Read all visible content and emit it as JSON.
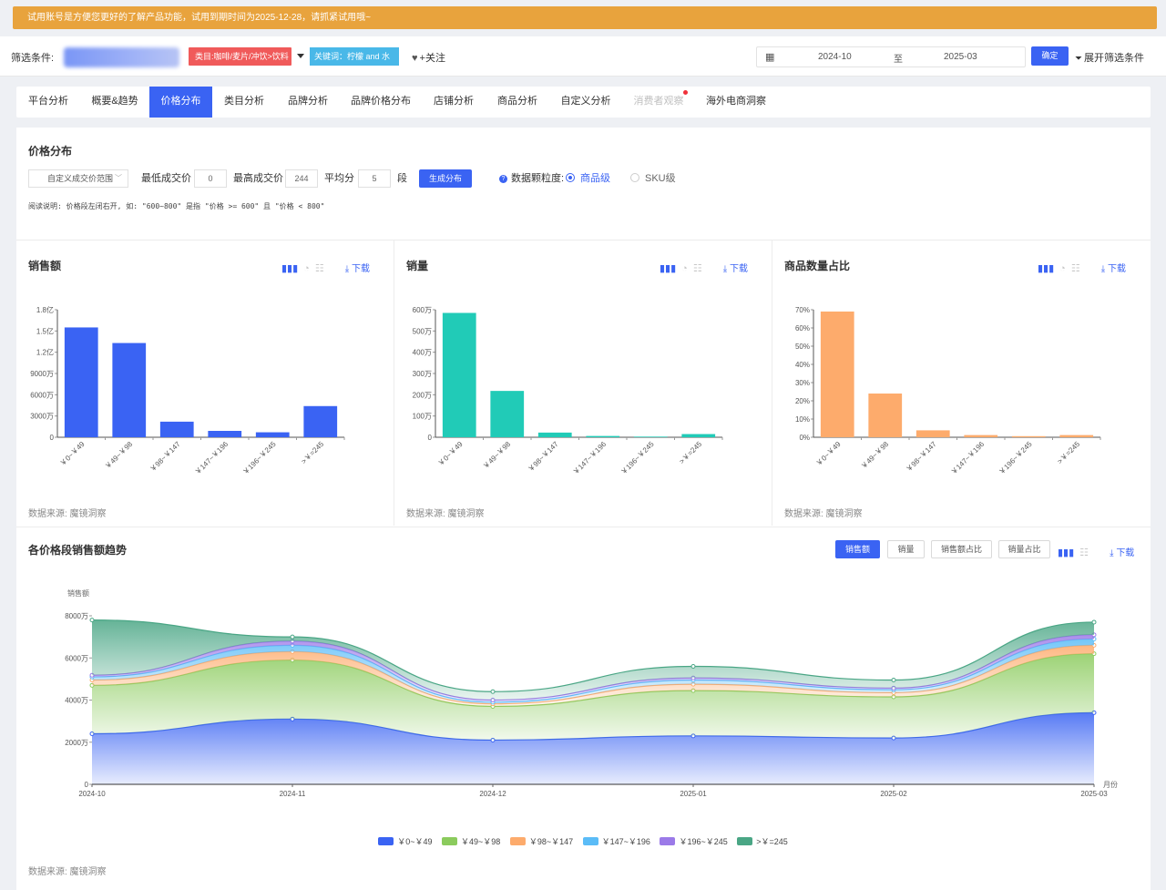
{
  "notice": "试用账号是方便您更好的了解产品功能，试用到期时间为2025-12-28，请抓紧试用哦~",
  "filter": {
    "label": "筛选条件:",
    "category_tag": "类目:咖啡/麦片/冲饮>饮料",
    "keyword_tag": "关键词：柠檬 and 水",
    "follow": "+关注",
    "date_start": "2024-10",
    "date_sep": "至",
    "date_end": "2025-03",
    "confirm": "确定",
    "expand": "展开筛选条件"
  },
  "tabs": [
    "平台分析",
    "概要&趋势",
    "价格分布",
    "类目分析",
    "品牌分析",
    "品牌价格分布",
    "店铺分析",
    "商品分析",
    "自定义分析",
    "消费者观察",
    "海外电商洞察"
  ],
  "active_tab": "价格分布",
  "price_section": {
    "title": "价格分布",
    "range_select": "自定义成交价范围",
    "min_label": "最低成交价",
    "min_value": "0",
    "max_label": "最高成交价",
    "max_value": "244",
    "avg_label": "平均分",
    "avg_value": "5",
    "seg_label": "段",
    "generate": "生成分布",
    "granularity_label": "数据颗粒度:",
    "opt_product": "商品级",
    "opt_sku": "SKU级",
    "note": "阅读说明: 价格段左闭右开, 如: \"600~800\" 是指 \"价格 >= 600\" 且 \"价格 < 800\""
  },
  "download": "下载",
  "source": "数据来源: 魔镜洞察",
  "trend_buttons": [
    "销售额",
    "销量",
    "销售额占比",
    "销量占比"
  ],
  "chart_data": [
    {
      "type": "bar",
      "title": "销售额",
      "categories": [
        "￥0~￥49",
        "￥49~￥98",
        "￥98~￥147",
        "￥147~￥196",
        "￥196~￥245",
        ">￥=245"
      ],
      "values": [
        15500,
        13300,
        2200,
        900,
        700,
        4400
      ],
      "value_unit": "万",
      "ylim": [
        0,
        18000
      ],
      "yticks": [
        "0",
        "3000万",
        "6000万",
        "9000万",
        "1.2亿",
        "1.5亿",
        "1.8亿"
      ],
      "color": "#3a63f3"
    },
    {
      "type": "bar",
      "title": "销量",
      "categories": [
        "￥0~￥49",
        "￥49~￥98",
        "￥98~￥147",
        "￥147~￥196",
        "￥196~￥245",
        ">￥=245"
      ],
      "values": [
        585,
        218,
        22,
        6,
        3,
        15
      ],
      "value_unit": "万",
      "ylim": [
        0,
        600
      ],
      "yticks": [
        "0",
        "100万",
        "200万",
        "300万",
        "400万",
        "500万",
        "600万"
      ],
      "color": "#21cbb7"
    },
    {
      "type": "bar",
      "title": "商品数量占比",
      "categories": [
        "￥0~￥49",
        "￥49~￥98",
        "￥98~￥147",
        "￥147~￥196",
        "￥196~￥245",
        ">￥=245"
      ],
      "values": [
        69,
        24,
        3.8,
        1.2,
        0.6,
        1.2
      ],
      "value_unit": "%",
      "ylim": [
        0,
        70
      ],
      "yticks": [
        "0%",
        "10%",
        "20%",
        "30%",
        "40%",
        "50%",
        "60%",
        "70%"
      ],
      "color": "#fdab6c"
    },
    {
      "type": "area",
      "title": "各价格段销售额趋势",
      "stacked": true,
      "ylabel": "销售额",
      "xlabel": "月份",
      "x": [
        "2024-10",
        "2024-11",
        "2024-12",
        "2025-01",
        "2025-02",
        "2025-03"
      ],
      "ylim": [
        0,
        8000
      ],
      "yticks": [
        "0",
        "2000万",
        "4000万",
        "6000万",
        "8000万"
      ],
      "series": [
        {
          "name": "￥0~￥49",
          "color": "#3a63f3",
          "values": [
            2400,
            3100,
            2100,
            2300,
            2200,
            3400
          ]
        },
        {
          "name": "￥49~￥98",
          "color": "#8bcb5d",
          "values": [
            2300,
            2800,
            1600,
            2150,
            1950,
            2800
          ]
        },
        {
          "name": "￥98~￥147",
          "color": "#fdab6c",
          "values": [
            250,
            400,
            120,
            300,
            200,
            400
          ]
        },
        {
          "name": "￥147~￥196",
          "color": "#5bbcf7",
          "values": [
            150,
            300,
            80,
            200,
            140,
            300
          ]
        },
        {
          "name": "￥196~￥245",
          "color": "#9b7ae8",
          "values": [
            80,
            200,
            100,
            100,
            80,
            200
          ]
        },
        {
          "name": ">￥=245",
          "color": "#4aa685",
          "values": [
            2620,
            200,
            400,
            550,
            380,
            600
          ]
        }
      ]
    }
  ]
}
